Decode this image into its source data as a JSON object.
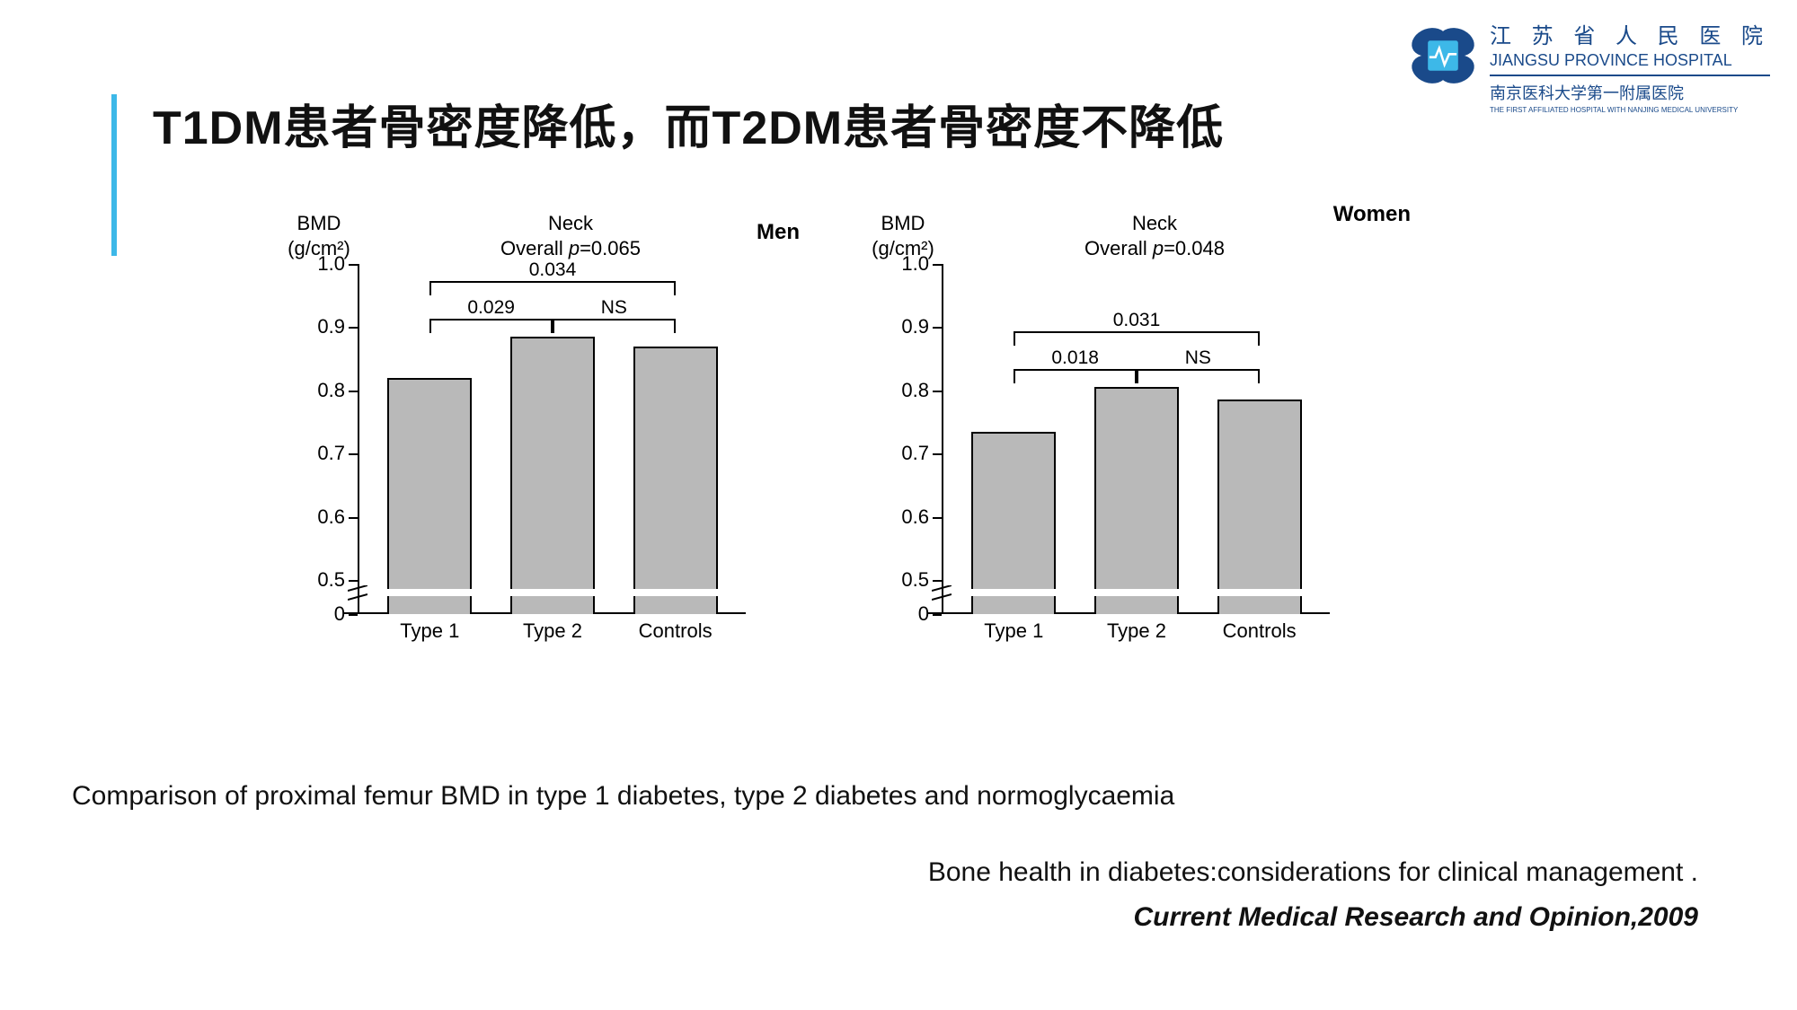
{
  "logo": {
    "cn": "江 苏 省 人 民 医 院",
    "en": "JIANGSU PROVINCE HOSPITAL",
    "sub": "南京医科大学第一附属医院",
    "sub2": "THE FIRST AFFILIATED HOSPITAL WITH NANJING MEDICAL UNIVERSITY",
    "icon_fill": "#1a4a8a",
    "heartbeat_color": "#3db8e8"
  },
  "title": "T1DM患者骨密度降低，而T2DM患者骨密度不降低",
  "rule_color": "#3db8e8",
  "caption": "Comparison of proximal femur BMD in type 1 diabetes, type 2 diabetes and normoglycaemia",
  "source": "Bone health in diabetes:considerations for clinical management .",
  "journal": "Current Medical Research and Opinion,2009",
  "charts": {
    "ylabel_line1": "BMD",
    "ylabel_line2": "(g/cm²)",
    "mid_line1": "Neck",
    "categories": [
      "Type 1",
      "Type 2",
      "Controls"
    ],
    "yticks": [
      0.5,
      0.6,
      0.7,
      0.8,
      0.9,
      1.0
    ],
    "ylim_low": 0.5,
    "ylim_high": 1.0,
    "zero_label": "0",
    "bar_fill": "#b9b9b9",
    "bar_stroke": "#000000",
    "axis_color": "#000000",
    "tick_fontsize": 22,
    "header_fontsize": 22,
    "gender_fontsize": 24,
    "men": {
      "gender": "Men",
      "overall_p": "Overall p=0.065",
      "values": [
        0.82,
        0.885,
        0.87
      ],
      "comparisons": {
        "t1_vs_t2": "0.029",
        "t2_vs_ctrl": "NS",
        "t1_vs_ctrl": "0.034"
      }
    },
    "women": {
      "gender": "Women",
      "overall_p": "Overall p=0.048",
      "values": [
        0.735,
        0.805,
        0.785
      ],
      "comparisons": {
        "t1_vs_t2": "0.018",
        "t2_vs_ctrl": "NS",
        "t1_vs_ctrl": "0.031"
      }
    }
  }
}
